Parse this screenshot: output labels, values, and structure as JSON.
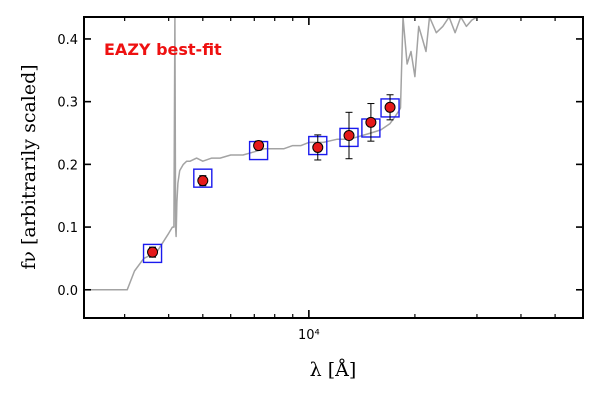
{
  "chart_data": {
    "type": "scatter",
    "title": "",
    "xlabel": "λ [Å]",
    "ylabel": "fν [arbitrarily scaled]",
    "annotation": "EAZY best-fit",
    "colors": {
      "annotation": "#ee1111",
      "template": "#a3a3a3",
      "model_box": "#1a1aee",
      "point_fill": "#e51a1a",
      "point_edge": "#000000"
    },
    "x_scale": "log",
    "xlim": [
      2300,
      60000
    ],
    "ylim": [
      -0.045,
      0.435
    ],
    "x_ticks": [
      {
        "value": 10000,
        "label": "10⁴"
      }
    ],
    "y_ticks": [
      {
        "value": 0.0,
        "label": "0.0"
      },
      {
        "value": 0.1,
        "label": "0.1"
      },
      {
        "value": 0.2,
        "label": "0.2"
      },
      {
        "value": 0.3,
        "label": "0.3"
      },
      {
        "value": 0.4,
        "label": "0.4"
      }
    ],
    "grid": false,
    "series": [
      {
        "kind": "template",
        "x": [
          2300,
          3050,
          3200,
          3400,
          3700,
          4000,
          4100,
          4140,
          4165,
          4185,
          4200,
          4220,
          4250,
          4300,
          4400,
          4500,
          4600,
          4800,
          5000,
          5300,
          5600,
          6000,
          6500,
          7000,
          7500,
          8000,
          8500,
          9000,
          9500,
          10000,
          10500,
          11000,
          12000,
          13000,
          14000,
          15000,
          16000,
          17000,
          17500,
          18000,
          18200,
          18500,
          19000,
          19500,
          20000,
          20500,
          21000,
          21500,
          22000,
          23000,
          24000,
          25000,
          26000,
          27000,
          28000,
          29000,
          30000
        ],
        "y": [
          0.0,
          0.0,
          0.03,
          0.05,
          0.06,
          0.09,
          0.1,
          0.1,
          0.435,
          0.1,
          0.085,
          0.14,
          0.17,
          0.19,
          0.2,
          0.205,
          0.205,
          0.21,
          0.205,
          0.21,
          0.21,
          0.215,
          0.215,
          0.22,
          0.225,
          0.225,
          0.225,
          0.23,
          0.23,
          0.235,
          0.235,
          0.235,
          0.24,
          0.24,
          0.245,
          0.25,
          0.255,
          0.265,
          0.275,
          0.285,
          0.29,
          0.435,
          0.36,
          0.38,
          0.34,
          0.42,
          0.4,
          0.38,
          0.435,
          0.41,
          0.42,
          0.435,
          0.41,
          0.435,
          0.42,
          0.43,
          0.435
        ]
      },
      {
        "kind": "model",
        "name": "",
        "x": [
          3600,
          5000,
          7200,
          10600,
          13000,
          15000,
          17000
        ],
        "y": [
          0.058,
          0.178,
          0.222,
          0.23,
          0.243,
          0.258,
          0.29
        ]
      },
      {
        "kind": "observed",
        "name": "",
        "x": [
          3600,
          5000,
          7200,
          10600,
          13000,
          15000,
          17000
        ],
        "y": [
          0.06,
          0.174,
          0.23,
          0.227,
          0.246,
          0.267,
          0.291
        ],
        "yerr": [
          0.008,
          0.008,
          0.007,
          0.02,
          0.037,
          0.03,
          0.02
        ]
      }
    ]
  }
}
